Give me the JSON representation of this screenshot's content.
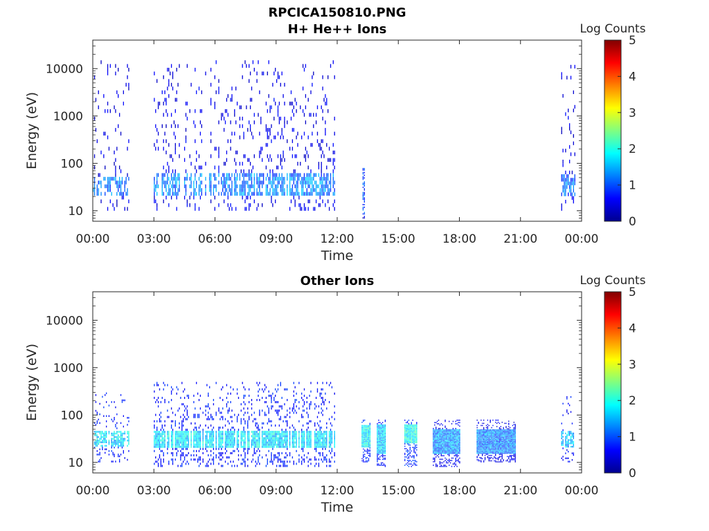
{
  "figure": {
    "filename_title": "RPCICA150810.PNG"
  },
  "colormap": [
    "#00008f",
    "#0000ff",
    "#0080ff",
    "#00ffff",
    "#80ff80",
    "#ffff00",
    "#ff8000",
    "#ff0000",
    "#800000"
  ],
  "chart_data": [
    {
      "type": "heatmap",
      "title": "H+ He++ Ions",
      "xlabel": "Time",
      "ylabel": "Energy (eV)",
      "yscale": "log",
      "ylim": [
        6,
        40000
      ],
      "xlim": [
        "00:00",
        "24:00"
      ],
      "xticks": [
        "00:00",
        "03:00",
        "06:00",
        "09:00",
        "12:00",
        "15:00",
        "18:00",
        "21:00",
        "00:00"
      ],
      "yticks": [
        "10",
        "100",
        "1000",
        "10000"
      ],
      "colorbar": {
        "label": "Log Counts",
        "range": [
          0,
          5
        ],
        "ticks": [
          "0",
          "1",
          "2",
          "3",
          "4",
          "5"
        ]
      },
      "data_blocks": [
        {
          "start_hour": 0.0,
          "end_hour": 1.8,
          "emin": 10,
          "emax": 15000,
          "peak_emin": 20,
          "peak_emax": 50,
          "level": 1.0,
          "density": "sparse"
        },
        {
          "start_hour": 3.0,
          "end_hour": 11.9,
          "emin": 10,
          "emax": 15000,
          "peak_emin": 20,
          "peak_emax": 60,
          "level": 1.1,
          "density": "medium"
        },
        {
          "start_hour": 13.25,
          "end_hour": 13.35,
          "emin": 6,
          "emax": 80,
          "peak_emin": 8,
          "peak_emax": 80,
          "level": 0.8,
          "density": "sparse"
        },
        {
          "start_hour": 23.0,
          "end_hour": 23.7,
          "emin": 10,
          "emax": 12000,
          "peak_emin": 20,
          "peak_emax": 50,
          "level": 1.0,
          "density": "medium"
        }
      ]
    },
    {
      "type": "heatmap",
      "title": "Other Ions",
      "xlabel": "Time",
      "ylabel": "Energy (eV)",
      "yscale": "log",
      "ylim": [
        6,
        40000
      ],
      "xlim": [
        "00:00",
        "24:00"
      ],
      "xticks": [
        "00:00",
        "03:00",
        "06:00",
        "09:00",
        "12:00",
        "15:00",
        "18:00",
        "21:00",
        "00:00"
      ],
      "yticks": [
        "10",
        "100",
        "1000",
        "10000"
      ],
      "colorbar": {
        "label": "Log Counts",
        "range": [
          0,
          5
        ],
        "ticks": [
          "0",
          "1",
          "2",
          "3",
          "4",
          "5"
        ]
      },
      "data_blocks": [
        {
          "start_hour": 0.0,
          "end_hour": 1.8,
          "emin": 10,
          "emax": 300,
          "peak_emin": 20,
          "peak_emax": 45,
          "level": 1.6,
          "density": "medium"
        },
        {
          "start_hour": 3.0,
          "end_hour": 11.9,
          "emin": 8,
          "emax": 500,
          "peak_emin": 20,
          "peak_emax": 45,
          "level": 1.6,
          "density": "dense"
        },
        {
          "start_hour": 13.2,
          "end_hour": 13.6,
          "emin": 10,
          "emax": 80,
          "peak_emin": 20,
          "peak_emax": 60,
          "level": 1.7,
          "density": "solid"
        },
        {
          "start_hour": 13.95,
          "end_hour": 14.4,
          "emin": 8,
          "emax": 80,
          "peak_emin": 15,
          "peak_emax": 60,
          "level": 1.5,
          "density": "solid"
        },
        {
          "start_hour": 15.3,
          "end_hour": 15.9,
          "emin": 8,
          "emax": 80,
          "peak_emin": 25,
          "peak_emax": 60,
          "level": 1.8,
          "density": "solid"
        },
        {
          "start_hour": 16.7,
          "end_hour": 18.0,
          "emin": 8,
          "emax": 80,
          "peak_emin": 15,
          "peak_emax": 50,
          "level": 1.2,
          "density": "solid"
        },
        {
          "start_hour": 18.85,
          "end_hour": 20.75,
          "emin": 10,
          "emax": 80,
          "peak_emin": 15,
          "peak_emax": 50,
          "level": 1.1,
          "density": "solid"
        },
        {
          "start_hour": 23.0,
          "end_hour": 23.7,
          "emin": 10,
          "emax": 250,
          "peak_emin": 20,
          "peak_emax": 45,
          "level": 1.4,
          "density": "medium"
        }
      ]
    }
  ]
}
